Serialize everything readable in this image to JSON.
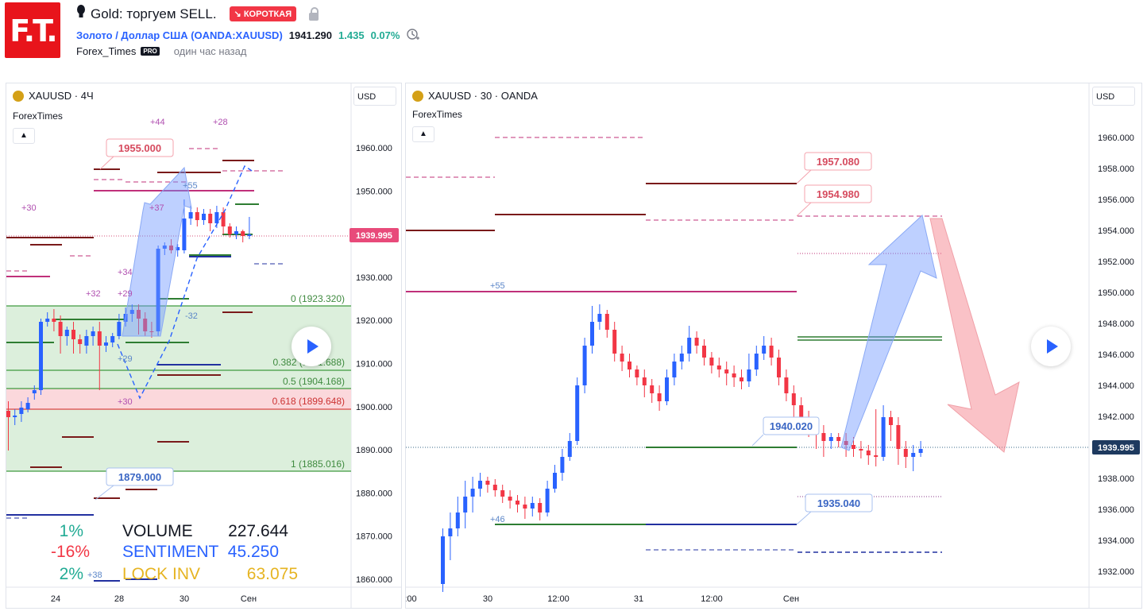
{
  "header": {
    "logo_text": "F.T.",
    "title": "Gold: торгуем SELL.",
    "badge": "↘ КОРОТКАЯ",
    "symbol_link": "Золото / Доллар США (OANDA:XAUUSD)",
    "price": "1941.290",
    "change": "1.435",
    "change_pct": "0.07%",
    "author": "Forex_Times",
    "pro_badge": "PRO",
    "time_ago": "один час назад"
  },
  "left_chart": {
    "title": "XAUUSD · 4Ч",
    "indicator_name": "ForexTimes",
    "currency": "USD",
    "current_price": "1939.995",
    "y_ticks": [
      "1960.000",
      "1950.000",
      "1940.000",
      "1930.000",
      "1920.000",
      "1910.000",
      "1900.000",
      "1890.000",
      "1880.000",
      "1870.000",
      "1860.000"
    ],
    "x_ticks": [
      "24",
      "28",
      "30",
      "Сен"
    ],
    "fib_labels": [
      "0 (1923.320)",
      "0.382 (1911.688)",
      "0.5 (1904.168)",
      "0.618 (1899.648)",
      "1 (1885.016)"
    ],
    "callouts": [
      "1955.000",
      "1879.000"
    ],
    "small_labels": [
      "+44",
      "+28",
      "+30",
      "+55",
      "+37",
      "+34",
      "+32",
      "+29",
      "-32",
      "+29",
      "+30",
      "+38"
    ],
    "stats": {
      "rows": [
        {
          "pct": "1%",
          "label": "VOLUME",
          "value": "227.644",
          "pct_color": "#22ab94",
          "label_color": "#131722"
        },
        {
          "pct": "-16%",
          "label": "SENTIMENT",
          "value": "45.250",
          "pct_color": "#f23645",
          "label_color": "#2962ff"
        },
        {
          "pct": "2%",
          "label": "LOCK INV",
          "value": "63.075",
          "pct_color": "#22ab94",
          "label_color": "#e6b422"
        }
      ]
    }
  },
  "right_chart": {
    "title": "XAUUSD · 30 · OANDA",
    "indicator_name": "ForexTimes",
    "currency": "USD",
    "current_price": "1939.995",
    "y_ticks": [
      "1960.000",
      "1958.000",
      "1956.000",
      "1954.000",
      "1952.000",
      "1950.000",
      "1948.000",
      "1946.000",
      "1944.000",
      "1942.000",
      "1940.000",
      "1938.000",
      "1936.000",
      "1934.000",
      "1932.000"
    ],
    "x_ticks": [
      ":00",
      "30",
      "12:00",
      "31",
      "12:00",
      "Сен"
    ],
    "callouts": [
      "1957.080",
      "1954.980",
      "1940.020",
      "1935.040"
    ],
    "small_labels": [
      "+55",
      "+46"
    ]
  },
  "colors": {
    "up": "#2962ff",
    "down": "#f23645",
    "accent": "#2962ff",
    "sell": "#f23645"
  }
}
